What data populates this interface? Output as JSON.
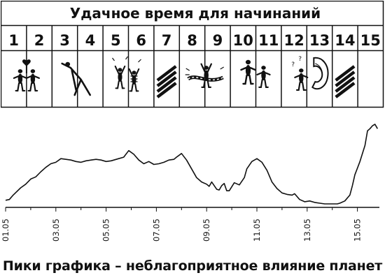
{
  "calendar": {
    "title": "Удачное время для начинаний",
    "days": [
      {
        "num": "1",
        "icon": "couple-with-heart-icon"
      },
      {
        "num": "2",
        "icon": "couple-with-heart-icon"
      },
      {
        "num": "3",
        "icon": "stretching-person-icon"
      },
      {
        "num": "4",
        "icon": "stretching-person-icon"
      },
      {
        "num": "5",
        "icon": "cheering-people-icon"
      },
      {
        "num": "6",
        "icon": "cheering-people-icon"
      },
      {
        "num": "7",
        "icon": "hatched-stripes-icon"
      },
      {
        "num": "8",
        "icon": "finish-line-runner-icon"
      },
      {
        "num": "9",
        "icon": "finish-line-runner-icon"
      },
      {
        "num": "10",
        "icon": "handshake-icon"
      },
      {
        "num": "11",
        "icon": "handshake-icon"
      },
      {
        "num": "12",
        "icon": "telephone-caller-icon"
      },
      {
        "num": "13",
        "icon": "telephone-caller-icon"
      },
      {
        "num": "14",
        "icon": "hatched-stripes-icon"
      },
      {
        "num": "15",
        "icon": "empty-cell"
      }
    ]
  },
  "chart_data": {
    "type": "line",
    "title": "",
    "xlabel": "",
    "ylabel": "",
    "grid": false,
    "x_ticks": [
      "01.05",
      "03.05",
      "05.05",
      "07.05",
      "09.05",
      "11.05",
      "13.05",
      "15.05"
    ],
    "x_range": [
      "01.05",
      "15.05 + ~1 day"
    ],
    "series": [
      {
        "x": [
          0.0,
          0.15,
          0.3,
          0.6,
          0.8,
          1.0,
          1.2,
          1.4,
          1.6,
          1.8,
          2.0,
          2.2,
          2.4,
          2.6,
          2.8,
          3.0,
          3.2,
          3.4,
          3.6,
          3.8,
          4.0,
          4.2,
          4.5,
          4.7,
          4.9,
          5.1,
          5.3,
          5.5,
          5.7,
          5.9,
          6.1,
          6.3,
          6.5,
          6.7,
          6.8,
          7.0,
          7.2,
          7.4,
          7.6,
          7.8,
          8.0,
          8.1,
          8.2,
          8.4,
          8.5,
          8.6,
          8.7,
          8.8,
          8.9,
          9.1,
          9.3,
          9.5,
          9.6,
          9.8,
          10.0,
          10.2,
          10.4,
          10.6,
          10.8,
          11.0,
          11.2,
          11.4,
          11.5,
          11.7,
          11.9,
          12.1,
          12.3,
          12.5,
          12.7,
          12.9,
          13.1,
          13.2,
          13.3,
          13.5,
          13.7,
          13.8,
          13.9,
          14.1,
          14.3,
          14.4,
          14.5,
          14.6,
          14.7,
          14.8
        ],
        "y": [
          5,
          6,
          12,
          22,
          27,
          34,
          37,
          44,
          50,
          55,
          57,
          62,
          61,
          60,
          58,
          57,
          59,
          60,
          61,
          60,
          58,
          59,
          62,
          64,
          73,
          68,
          60,
          55,
          58,
          54,
          55,
          57,
          60,
          61,
          64,
          69,
          60,
          48,
          36,
          30,
          27,
          24,
          30,
          20,
          19,
          25,
          28,
          18,
          18,
          29,
          26,
          36,
          48,
          58,
          62,
          57,
          46,
          30,
          21,
          15,
          13,
          12,
          14,
          6,
          3,
          4,
          2,
          1,
          0,
          0,
          0,
          0,
          1,
          4,
          12,
          25,
          40,
          58,
          80,
          100,
          103,
          107,
          109,
          103
        ]
      }
    ],
    "y_scale": "relative (no y axis printed)",
    "annotation": "Пики графика – неблагоприятное влияние планет"
  }
}
